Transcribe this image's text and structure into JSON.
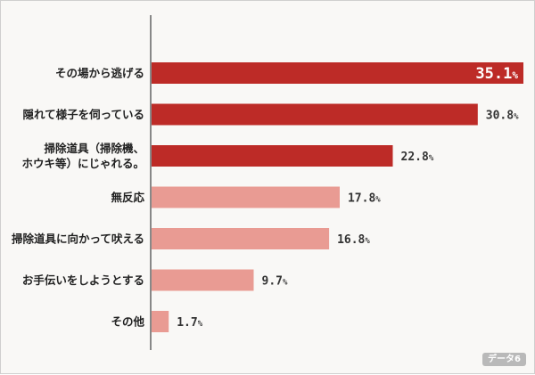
{
  "chart_data": {
    "type": "bar",
    "orientation": "horizontal",
    "categories": [
      [
        "その場から逃げる"
      ],
      [
        "隠れて様子を伺っている"
      ],
      [
        "掃除道具（掃除機、",
        "ホウキ等）にじゃれる。"
      ],
      [
        "無反応"
      ],
      [
        "掃除道具に向かって吠える"
      ],
      [
        "お手伝いをしようとする"
      ],
      [
        "その他"
      ]
    ],
    "values": [
      35.1,
      30.8,
      22.8,
      17.8,
      16.8,
      9.7,
      1.7
    ],
    "unit": "%",
    "xlim": [
      0,
      35.1
    ],
    "colors": {
      "dark": "#bd2b27",
      "light": "#e99b93",
      "axis": "#888888",
      "value_inside": "#ffffff"
    },
    "dark_bar_count": 3,
    "grid": false,
    "legend": "none"
  },
  "badge": {
    "label": "データ6"
  }
}
